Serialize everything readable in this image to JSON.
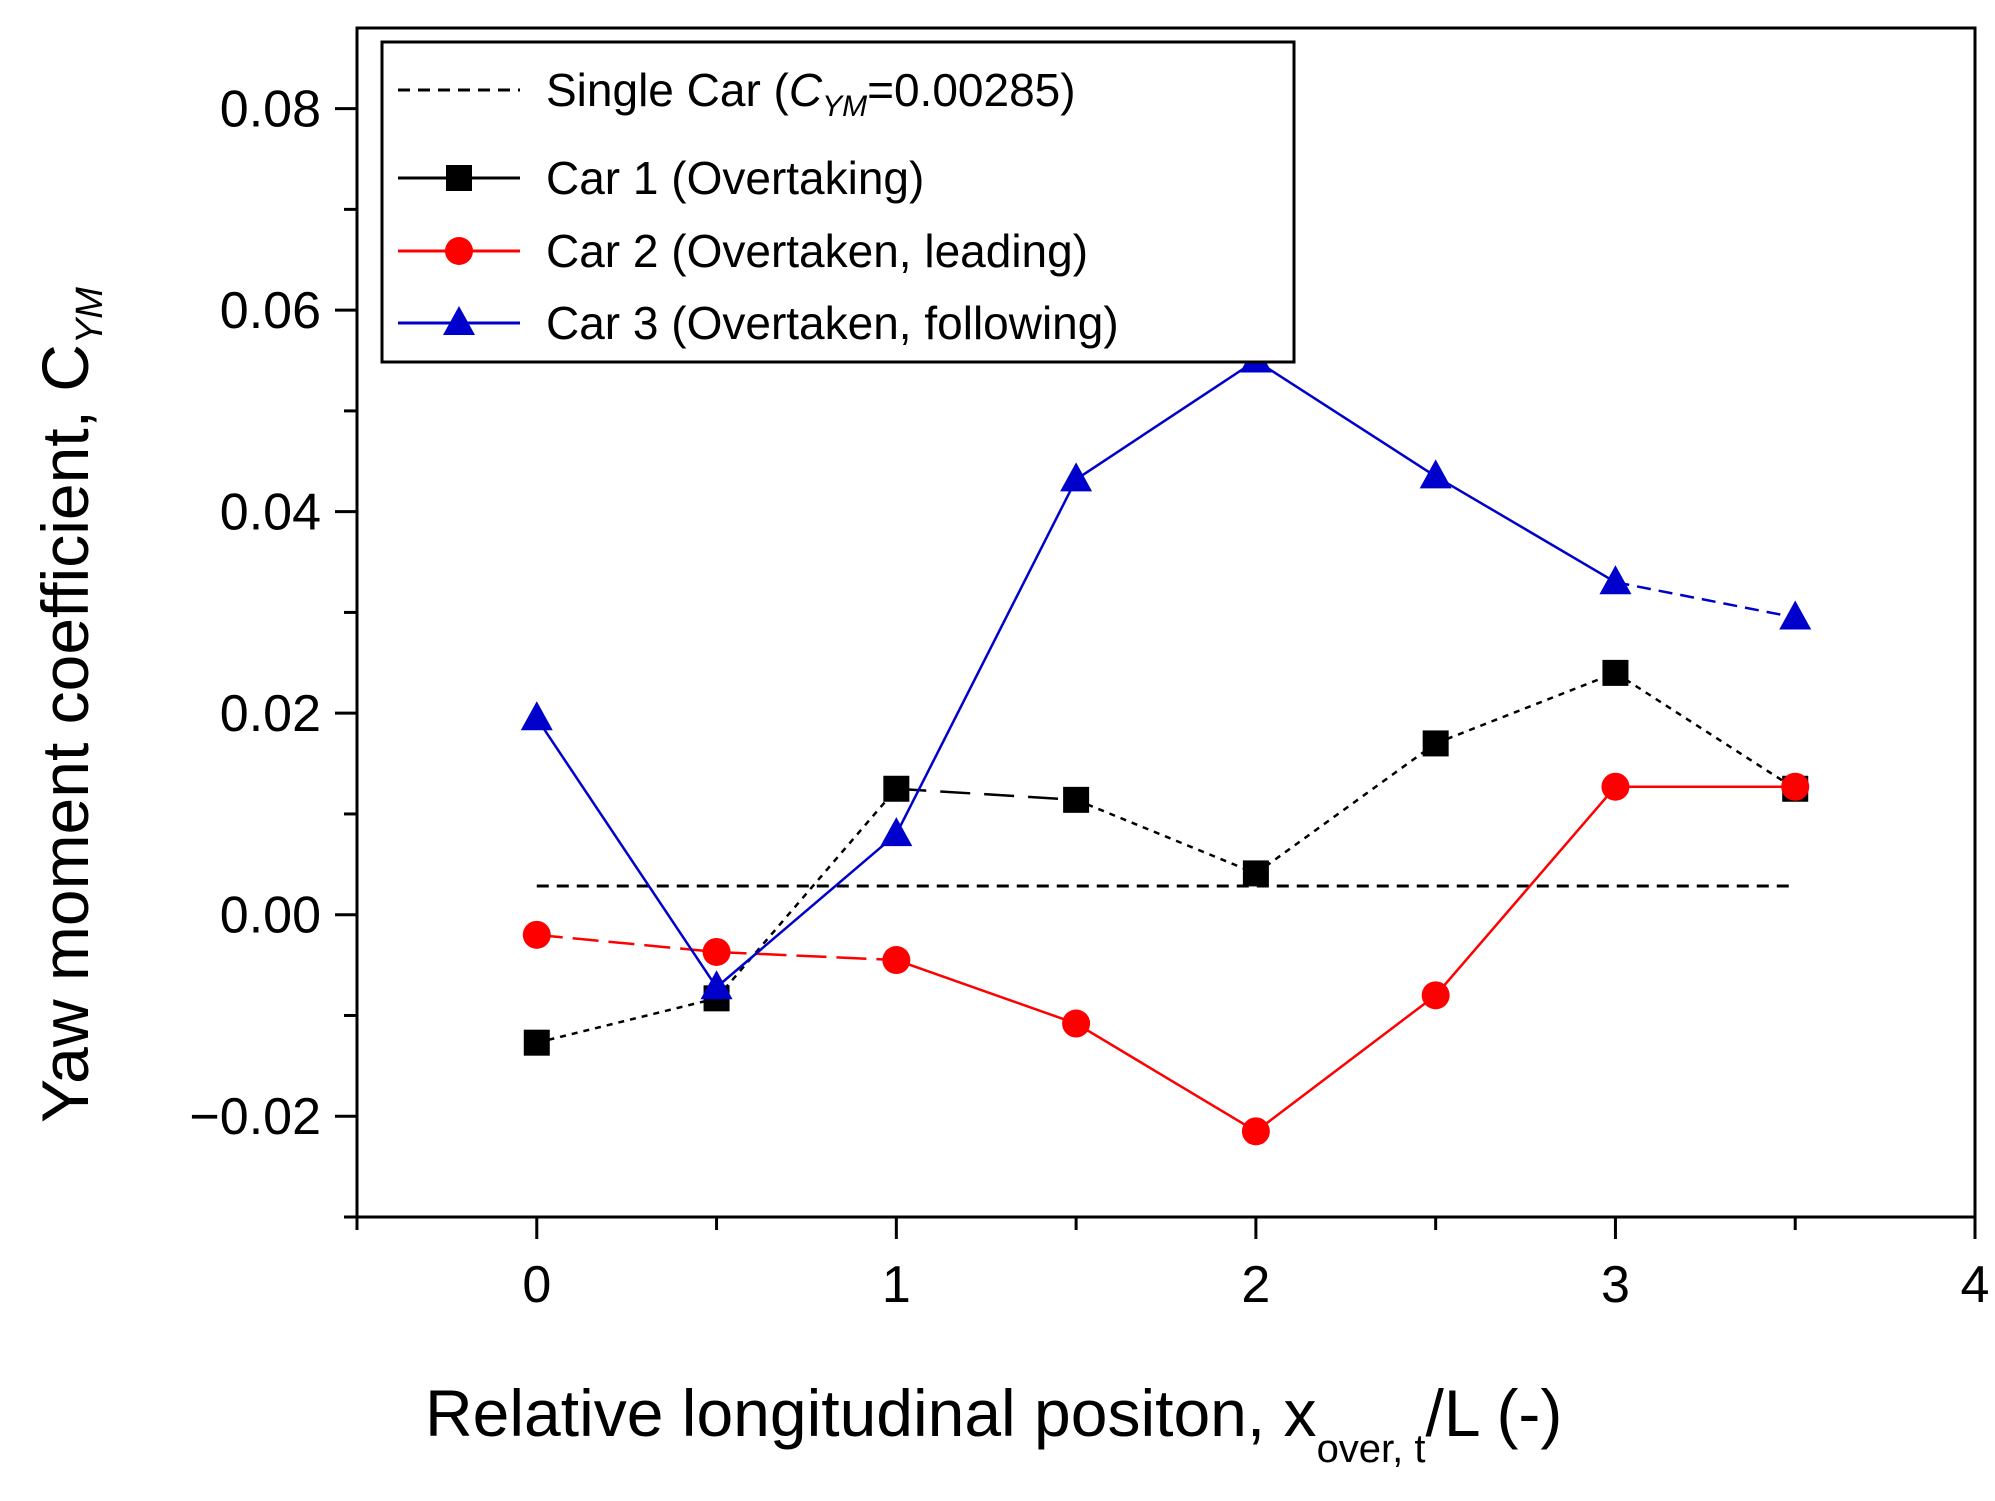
{
  "chart_data": {
    "type": "line",
    "title": "",
    "xlabel": "Relative longitudinal positon, x",
    "xlabel_sub": "over, t",
    "xlabel_suffix": "/L (-)",
    "ylabel": "Yaw moment coefficient, C",
    "ylabel_sub": "YM",
    "xlim": [
      -0.5,
      4
    ],
    "ylim": [
      -0.03,
      0.088
    ],
    "xticks": [
      0,
      1,
      2,
      3,
      4
    ],
    "xtick_labels": [
      "0",
      "1",
      "2",
      "3",
      "4"
    ],
    "yticks": [
      -0.02,
      0,
      0.02,
      0.04,
      0.06,
      0.08
    ],
    "ytick_labels": [
      "−0.02",
      "0.00",
      "0.02",
      "0.04",
      "0.06",
      "0.08"
    ],
    "grid": false,
    "legend_position": "top-left",
    "reference_line": {
      "name": "Single Car",
      "legend_prefix": "Single Car (",
      "legend_symbol": "C",
      "legend_sub": "YM",
      "legend_suffix": "=0.00285)",
      "value": 0.00285,
      "x_range": [
        0,
        3.5
      ],
      "color": "#000000",
      "style": "dashed"
    },
    "series": [
      {
        "name": "Car 1 (Overtaking)",
        "color": "#000000",
        "marker": "square",
        "x": [
          0,
          0.5,
          1,
          1.5,
          2,
          2.5,
          3,
          3.5
        ],
        "values": [
          -0.0127,
          -0.0083,
          0.0125,
          0.0114,
          0.0041,
          0.017,
          0.024,
          0.0125
        ]
      },
      {
        "name": "Car 2 (Overtaken, leading)",
        "color": "#ff0000",
        "marker": "circle",
        "x": [
          0,
          0.5,
          1,
          1.5,
          2,
          2.5,
          3,
          3.5
        ],
        "values": [
          -0.002,
          -0.0037,
          -0.0045,
          -0.0108,
          -0.0215,
          -0.008,
          0.0127,
          0.0127
        ]
      },
      {
        "name": "Car 3 (Overtaken, following)",
        "color": "#0000cc",
        "marker": "triangle",
        "x": [
          0,
          0.5,
          1,
          1.5,
          2,
          2.5,
          3,
          3.5
        ],
        "values": [
          0.0195,
          -0.0072,
          0.008,
          0.0432,
          0.055,
          0.0435,
          0.033,
          0.0295
        ]
      }
    ]
  }
}
